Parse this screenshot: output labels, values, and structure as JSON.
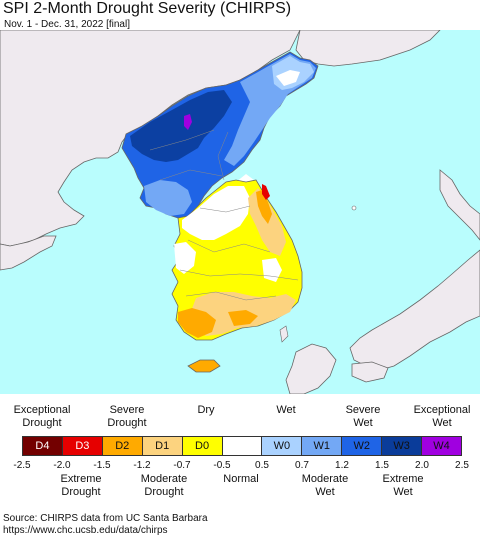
{
  "header": {
    "title": "SPI 2-Month Drought Severity (CHIRPS)",
    "subtitle": "Nov. 1 - Dec. 31, 2022 [final]"
  },
  "legend": {
    "top_labels": [
      {
        "text": "Exceptional\nDrought",
        "center": 42
      },
      {
        "text": "Severe\nDrought",
        "center": 127
      },
      {
        "text": "Dry",
        "center": 206
      },
      {
        "text": "Wet",
        "center": 286
      },
      {
        "text": "Severe\nWet",
        "center": 363
      },
      {
        "text": "Exceptional\nWet",
        "center": 442
      }
    ],
    "categories": [
      {
        "code": "D4",
        "color": "#730000",
        "text_color": "#ffffff"
      },
      {
        "code": "D3",
        "color": "#e60000",
        "text_color": "#ffffff"
      },
      {
        "code": "D2",
        "color": "#ffaa00",
        "text_color": "#111111"
      },
      {
        "code": "D1",
        "color": "#fcd37f",
        "text_color": "#111111"
      },
      {
        "code": "D0",
        "color": "#ffff00",
        "text_color": "#111111"
      },
      {
        "code": "",
        "color": "#ffffff",
        "text_color": "#111111"
      },
      {
        "code": "W0",
        "color": "#aad2ff",
        "text_color": "#111111"
      },
      {
        "code": "W1",
        "color": "#73a8f5",
        "text_color": "#111111"
      },
      {
        "code": "W2",
        "color": "#1f64e6",
        "text_color": "#111111"
      },
      {
        "code": "W3",
        "color": "#0a3c9a",
        "text_color": "#111111"
      },
      {
        "code": "W4",
        "color": "#a000e0",
        "text_color": "#111111"
      }
    ],
    "ticks": [
      "-2.5",
      "-2.0",
      "-1.5",
      "-1.2",
      "-0.7",
      "-0.5",
      "0.5",
      "0.7",
      "1.2",
      "1.5",
      "2.0",
      "2.5"
    ],
    "bottom_labels": [
      {
        "text": "Extreme\nDrought",
        "center": 81
      },
      {
        "text": "Moderate\nDrought",
        "center": 164
      },
      {
        "text": "Normal",
        "center": 241
      },
      {
        "text": "Moderate\nWet",
        "center": 325
      },
      {
        "text": "Extreme\nWet",
        "center": 403
      }
    ]
  },
  "source": {
    "line1": "Source: CHIRPS data from UC Santa Barbara",
    "line2": "https://www.chc.ucsb.edu/data/chirps"
  },
  "colors": {
    "ocean": "#b9fdfd",
    "land_outside": "#efeaef",
    "boundary": "#666666"
  }
}
